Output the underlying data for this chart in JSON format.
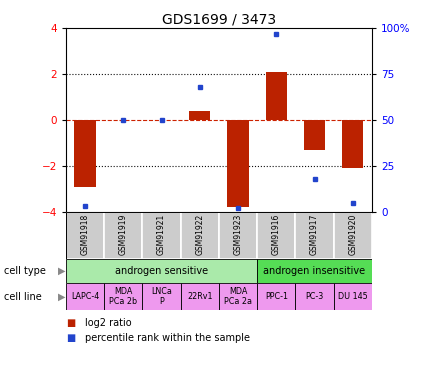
{
  "title": "GDS1699 / 3473",
  "samples": [
    "GSM91918",
    "GSM91919",
    "GSM91921",
    "GSM91922",
    "GSM91923",
    "GSM91916",
    "GSM91917",
    "GSM91920"
  ],
  "log2_ratio": [
    -2.9,
    0.0,
    0.0,
    0.4,
    -3.8,
    2.1,
    -1.3,
    -2.1
  ],
  "percentile_rank": [
    3,
    50,
    50,
    68,
    2,
    97,
    18,
    5
  ],
  "ylim_left": [
    -4,
    4
  ],
  "ylim_right": [
    0,
    100
  ],
  "yticks_left": [
    -4,
    -2,
    0,
    2,
    4
  ],
  "yticks_right": [
    0,
    25,
    50,
    75,
    100
  ],
  "ytick_labels_right": [
    "0",
    "25",
    "50",
    "75",
    "100%"
  ],
  "bar_color": "#bb2200",
  "dot_color": "#2244cc",
  "zero_line_color": "#cc2200",
  "dotted_line_color": "#111111",
  "cell_type_groups": [
    {
      "label": "androgen sensitive",
      "start": 0,
      "end": 5,
      "color": "#aaeaaa"
    },
    {
      "label": "androgen insensitive",
      "start": 5,
      "end": 8,
      "color": "#55dd55"
    }
  ],
  "cell_lines": [
    {
      "label": "LAPC-4",
      "start": 0,
      "end": 1
    },
    {
      "label": "MDA\nPCa 2b",
      "start": 1,
      "end": 2
    },
    {
      "label": "LNCa\nP",
      "start": 2,
      "end": 3
    },
    {
      "label": "22Rv1",
      "start": 3,
      "end": 4
    },
    {
      "label": "MDA\nPCa 2a",
      "start": 4,
      "end": 5
    },
    {
      "label": "PPC-1",
      "start": 5,
      "end": 6
    },
    {
      "label": "PC-3",
      "start": 6,
      "end": 7
    },
    {
      "label": "DU 145",
      "start": 7,
      "end": 8
    }
  ],
  "cell_line_color": "#ee99ee",
  "sample_box_color": "#cccccc",
  "legend_red_label": "log2 ratio",
  "legend_blue_label": "percentile rank within the sample",
  "title_fontsize": 10,
  "tick_fontsize": 7.5
}
